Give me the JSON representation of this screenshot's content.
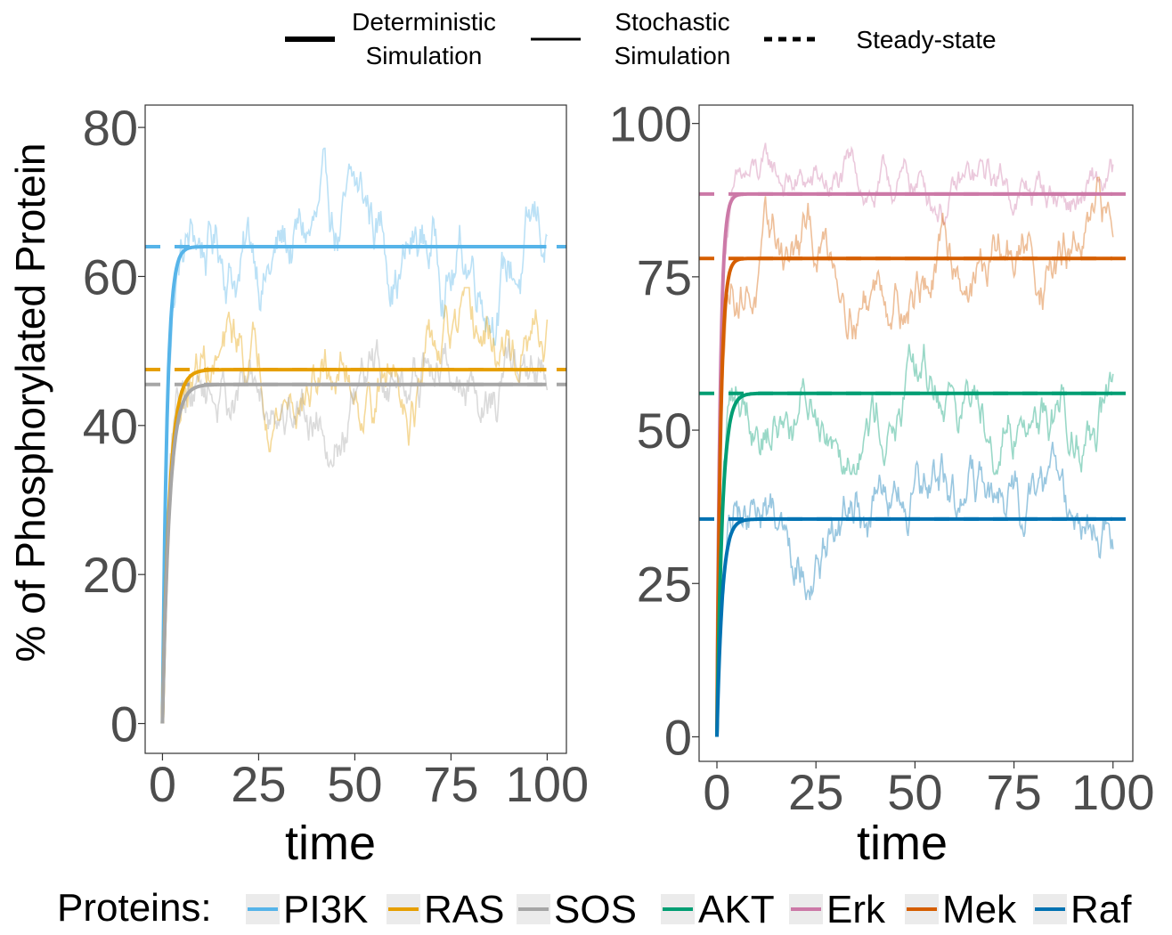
{
  "legend_top": {
    "items": [
      {
        "label_line1": "Deterministic",
        "label_line2": "Simulation",
        "style": "thick"
      },
      {
        "label_line1": "Stochastic",
        "label_line2": "Simulation",
        "style": "thin"
      },
      {
        "label_line1": "Steady-state",
        "label_line2": "",
        "style": "dashed"
      }
    ]
  },
  "legend_bottom": {
    "title": "Proteins:",
    "items": [
      {
        "name": "PI3K",
        "color": "#56B4E9"
      },
      {
        "name": "RAS",
        "color": "#E69F00"
      },
      {
        "name": "SOS",
        "color": "#A6A6A6"
      },
      {
        "name": "AKT",
        "color": "#009E73"
      },
      {
        "name": "Erk",
        "color": "#CC79A7"
      },
      {
        "name": "Mek",
        "color": "#D55E00"
      },
      {
        "name": "Raf",
        "color": "#0072B2"
      }
    ]
  },
  "chart_data": [
    {
      "type": "line",
      "panel": "left",
      "xlabel": "time",
      "ylabel": "% of Phosphorylated Protein",
      "xlim": [
        -4.5,
        105
      ],
      "ylim": [
        -4,
        83
      ],
      "xticks": [
        0,
        25,
        50,
        75,
        100
      ],
      "yticks": [
        0,
        20,
        40,
        60,
        80
      ],
      "grid": false,
      "series": [
        {
          "name": "PI3K",
          "color": "#56B4E9",
          "steady_state": 64,
          "rate": 0.85,
          "noise": 6
        },
        {
          "name": "RAS",
          "color": "#E69F00",
          "steady_state": 47.5,
          "rate": 0.55,
          "noise": 5
        },
        {
          "name": "SOS",
          "color": "#A6A6A6",
          "steady_state": 45.5,
          "rate": 0.55,
          "noise": 5
        }
      ]
    },
    {
      "type": "line",
      "panel": "right",
      "xlabel": "time",
      "ylabel": "",
      "xlim": [
        -4.5,
        105
      ],
      "ylim": [
        -4,
        103
      ],
      "xticks": [
        0,
        25,
        50,
        75,
        100
      ],
      "yticks": [
        0,
        25,
        50,
        75,
        100
      ],
      "grid": false,
      "series": [
        {
          "name": "Erk",
          "color": "#CC79A7",
          "steady_state": 88.5,
          "rate": 1.2,
          "noise": 4
        },
        {
          "name": "Mek",
          "color": "#D55E00",
          "steady_state": 78,
          "rate": 1.1,
          "noise": 6
        },
        {
          "name": "AKT",
          "color": "#009E73",
          "steady_state": 56,
          "rate": 0.75,
          "noise": 6
        },
        {
          "name": "Raf",
          "color": "#0072B2",
          "steady_state": 35.5,
          "rate": 0.75,
          "noise": 6
        }
      ]
    }
  ]
}
